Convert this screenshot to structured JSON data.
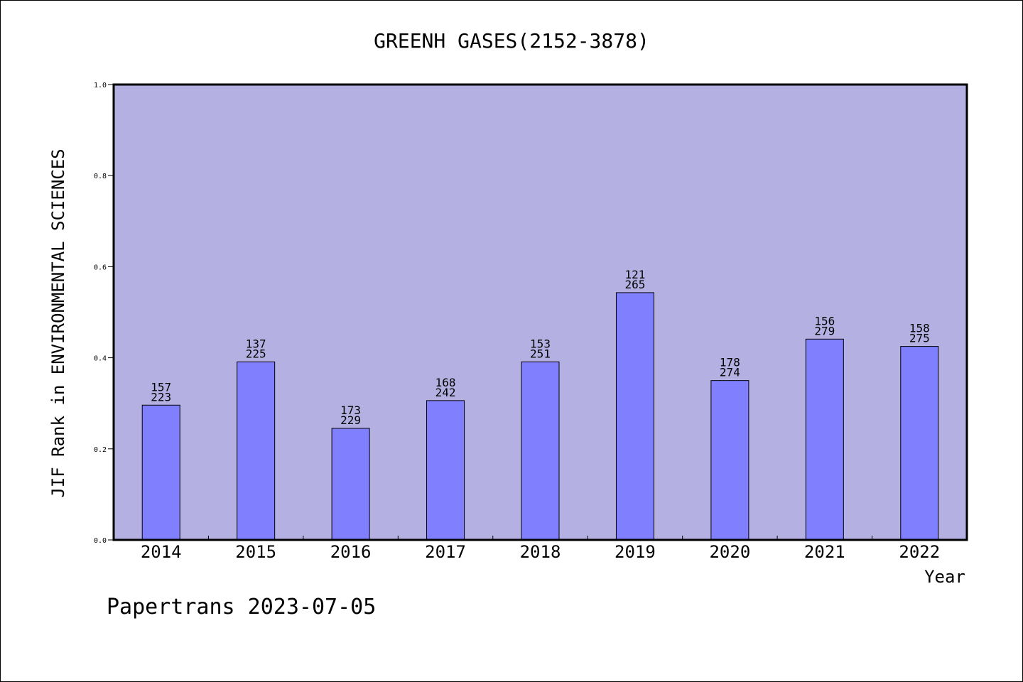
{
  "chart_data": {
    "type": "bar",
    "title": "GREENH GASES(2152-3878)",
    "xlabel": "Year",
    "ylabel": "JIF Rank in ENVIRONMENTAL SCIENCES",
    "ylim": [
      0,
      1.0
    ],
    "yticks": [
      "0.0",
      "0.2",
      "0.4",
      "0.6",
      "0.8",
      "1.0"
    ],
    "categories": [
      "2014",
      "2015",
      "2016",
      "2017",
      "2018",
      "2019",
      "2020",
      "2021",
      "2022"
    ],
    "values": [
      0.296,
      0.391,
      0.245,
      0.306,
      0.391,
      0.543,
      0.35,
      0.441,
      0.425
    ],
    "labels_top": [
      "157",
      "137",
      "173",
      "168",
      "153",
      "121",
      "178",
      "156",
      "158"
    ],
    "labels_bottom": [
      "223",
      "225",
      "229",
      "242",
      "251",
      "265",
      "274",
      "279",
      "275"
    ],
    "grid": false,
    "colors": {
      "plot_background": "#b5b0e2",
      "bar_fill": "#8080ff",
      "bar_stroke": "#000000"
    }
  },
  "footer": {
    "text": "Papertrans 2023-07-05"
  }
}
